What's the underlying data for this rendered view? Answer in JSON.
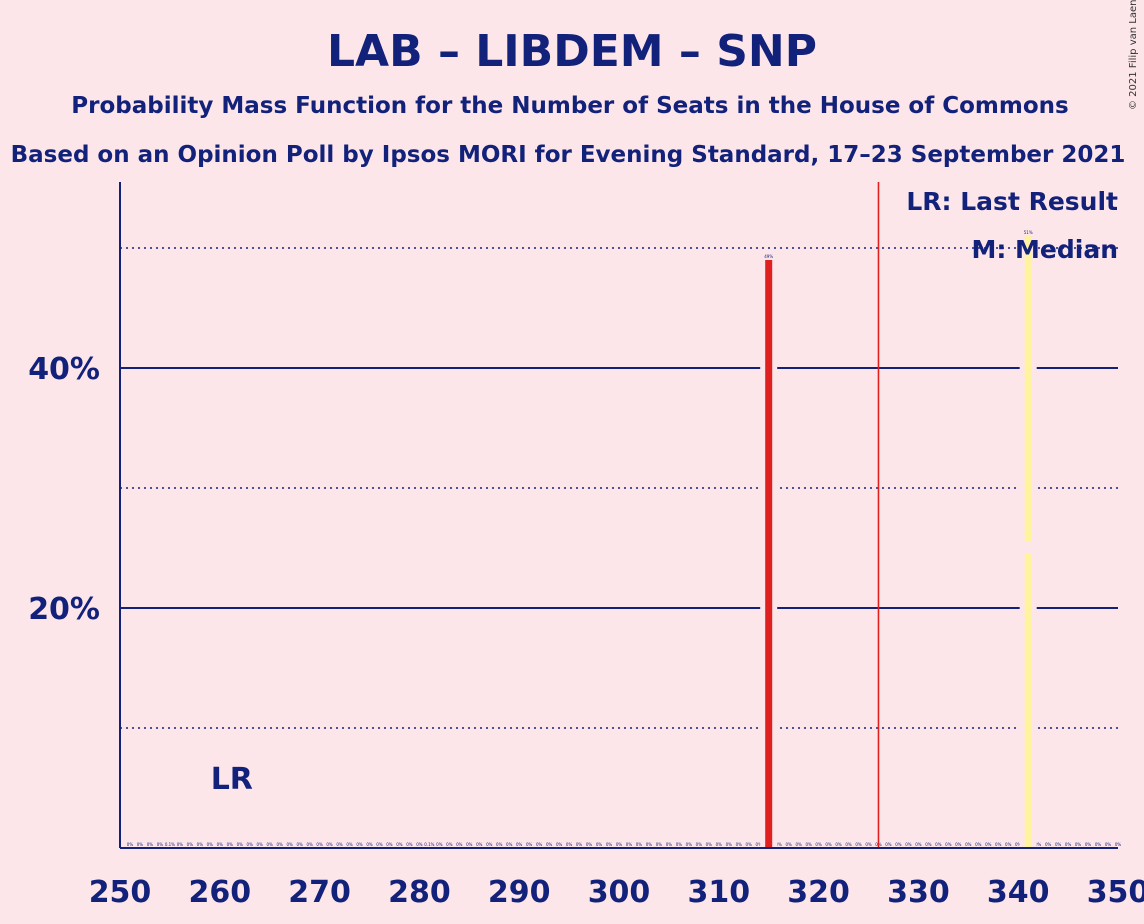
{
  "chart_data": {
    "type": "bar",
    "title": "LAB – LIBDEM – SNP",
    "subtitle": "Probability Mass Function for the Number of Seats in the House of Commons",
    "subtitle2": "Based on an Opinion Poll by Ipsos MORI for Evening Standard, 17–23 September 2021",
    "copyright": "© 2021 Filip van Laenen",
    "xlim": [
      250,
      350
    ],
    "ylim": [
      0,
      55
    ],
    "x_ticks": [
      250,
      260,
      270,
      280,
      290,
      300,
      310,
      320,
      330,
      340,
      350
    ],
    "x_tick_labels": [
      "250",
      "260",
      "270",
      "280",
      "290",
      "300",
      "310",
      "320",
      "330",
      "340",
      "350"
    ],
    "y_ticks": [
      20,
      40
    ],
    "y_tick_labels": [
      "20%",
      "40%"
    ],
    "y_minor_grid": [
      10,
      30,
      50
    ],
    "majority_line": 326,
    "last_result": {
      "seat": 260,
      "label": "LR"
    },
    "median": {
      "seat": 341
    },
    "legend": [
      "LR: Last Result",
      "M: Median"
    ],
    "bars": [
      {
        "seat": 315,
        "value": 49,
        "label": "49%",
        "color": "#e0201e"
      },
      {
        "seat": 341,
        "value": 51,
        "label": "51%",
        "color": "#fff3a0"
      }
    ],
    "small_labels": [
      {
        "seat": 251,
        "label": "0%"
      },
      {
        "seat": 252,
        "label": "0%"
      },
      {
        "seat": 253,
        "label": "0%"
      },
      {
        "seat": 254,
        "label": "0%"
      },
      {
        "seat": 255,
        "label": "0.1%"
      },
      {
        "seat": 256,
        "label": "0%"
      },
      {
        "seat": 257,
        "label": "0%"
      },
      {
        "seat": 258,
        "label": "0%"
      },
      {
        "seat": 259,
        "label": "0%"
      },
      {
        "seat": 260,
        "label": "0%"
      },
      {
        "seat": 261,
        "label": "0%"
      },
      {
        "seat": 262,
        "label": "0%"
      },
      {
        "seat": 263,
        "label": "0%"
      },
      {
        "seat": 264,
        "label": "0%"
      },
      {
        "seat": 265,
        "label": "0%"
      },
      {
        "seat": 266,
        "label": "0%"
      },
      {
        "seat": 267,
        "label": "0%"
      },
      {
        "seat": 268,
        "label": "0%"
      },
      {
        "seat": 269,
        "label": "0%"
      },
      {
        "seat": 270,
        "label": "0%"
      },
      {
        "seat": 271,
        "label": "0%"
      },
      {
        "seat": 272,
        "label": "0%"
      },
      {
        "seat": 273,
        "label": "0%"
      },
      {
        "seat": 274,
        "label": "0%"
      },
      {
        "seat": 275,
        "label": "0%"
      },
      {
        "seat": 276,
        "label": "0%"
      },
      {
        "seat": 277,
        "label": "0%"
      },
      {
        "seat": 278,
        "label": "0%"
      },
      {
        "seat": 279,
        "label": "0%"
      },
      {
        "seat": 280,
        "label": "0%"
      },
      {
        "seat": 281,
        "label": "0.1%"
      },
      {
        "seat": 282,
        "label": "0%"
      },
      {
        "seat": 283,
        "label": "0%"
      },
      {
        "seat": 284,
        "label": "0%"
      },
      {
        "seat": 285,
        "label": "0%"
      },
      {
        "seat": 286,
        "label": "0%"
      },
      {
        "seat": 287,
        "label": "0%"
      },
      {
        "seat": 288,
        "label": "0%"
      },
      {
        "seat": 289,
        "label": "0%"
      },
      {
        "seat": 290,
        "label": "0%"
      },
      {
        "seat": 291,
        "label": "0%"
      },
      {
        "seat": 292,
        "label": "0%"
      },
      {
        "seat": 293,
        "label": "0%"
      },
      {
        "seat": 294,
        "label": "0%"
      },
      {
        "seat": 295,
        "label": "0%"
      },
      {
        "seat": 296,
        "label": "0%"
      },
      {
        "seat": 297,
        "label": "0%"
      },
      {
        "seat": 298,
        "label": "0%"
      },
      {
        "seat": 299,
        "label": "0%"
      },
      {
        "seat": 300,
        "label": "0%"
      },
      {
        "seat": 301,
        "label": "0%"
      },
      {
        "seat": 302,
        "label": "0%"
      },
      {
        "seat": 303,
        "label": "0%"
      },
      {
        "seat": 304,
        "label": "0%"
      },
      {
        "seat": 305,
        "label": "0%"
      },
      {
        "seat": 306,
        "label": "0%"
      },
      {
        "seat": 307,
        "label": "0%"
      },
      {
        "seat": 308,
        "label": "0%"
      },
      {
        "seat": 309,
        "label": "0%"
      },
      {
        "seat": 310,
        "label": "0%"
      },
      {
        "seat": 311,
        "label": "0%"
      },
      {
        "seat": 312,
        "label": "0%"
      },
      {
        "seat": 313,
        "label": "0%"
      },
      {
        "seat": 314,
        "label": "0%"
      },
      {
        "seat": 316,
        "label": "0%"
      },
      {
        "seat": 317,
        "label": "0%"
      },
      {
        "seat": 318,
        "label": "0%"
      },
      {
        "seat": 319,
        "label": "0%"
      },
      {
        "seat": 320,
        "label": "0%"
      },
      {
        "seat": 321,
        "label": "0%"
      },
      {
        "seat": 322,
        "label": "0%"
      },
      {
        "seat": 323,
        "label": "0%"
      },
      {
        "seat": 324,
        "label": "0%"
      },
      {
        "seat": 325,
        "label": "0%"
      },
      {
        "seat": 326,
        "label": "0%"
      },
      {
        "seat": 327,
        "label": "0%"
      },
      {
        "seat": 328,
        "label": "0%"
      },
      {
        "seat": 329,
        "label": "0%"
      },
      {
        "seat": 330,
        "label": "0%"
      },
      {
        "seat": 331,
        "label": "0%"
      },
      {
        "seat": 332,
        "label": "0%"
      },
      {
        "seat": 333,
        "label": "0%"
      },
      {
        "seat": 334,
        "label": "0%"
      },
      {
        "seat": 335,
        "label": "0%"
      },
      {
        "seat": 336,
        "label": "0%"
      },
      {
        "seat": 337,
        "label": "0%"
      },
      {
        "seat": 338,
        "label": "0%"
      },
      {
        "seat": 339,
        "label": "0%"
      },
      {
        "seat": 340,
        "label": "0%"
      },
      {
        "seat": 342,
        "label": "0%"
      },
      {
        "seat": 343,
        "label": "0%"
      },
      {
        "seat": 344,
        "label": "0%"
      },
      {
        "seat": 345,
        "label": "0%"
      },
      {
        "seat": 346,
        "label": "0%"
      },
      {
        "seat": 347,
        "label": "0%"
      },
      {
        "seat": 348,
        "label": "0%"
      },
      {
        "seat": 349,
        "label": "0%"
      },
      {
        "seat": 350,
        "label": "0%"
      }
    ],
    "colors": {
      "background": "#fde6ea",
      "text": "#12227a",
      "axis": "#12227a",
      "majority": "#e0201e",
      "lab_bar": "#e0201e",
      "median_bar": "#fff3a0"
    }
  }
}
